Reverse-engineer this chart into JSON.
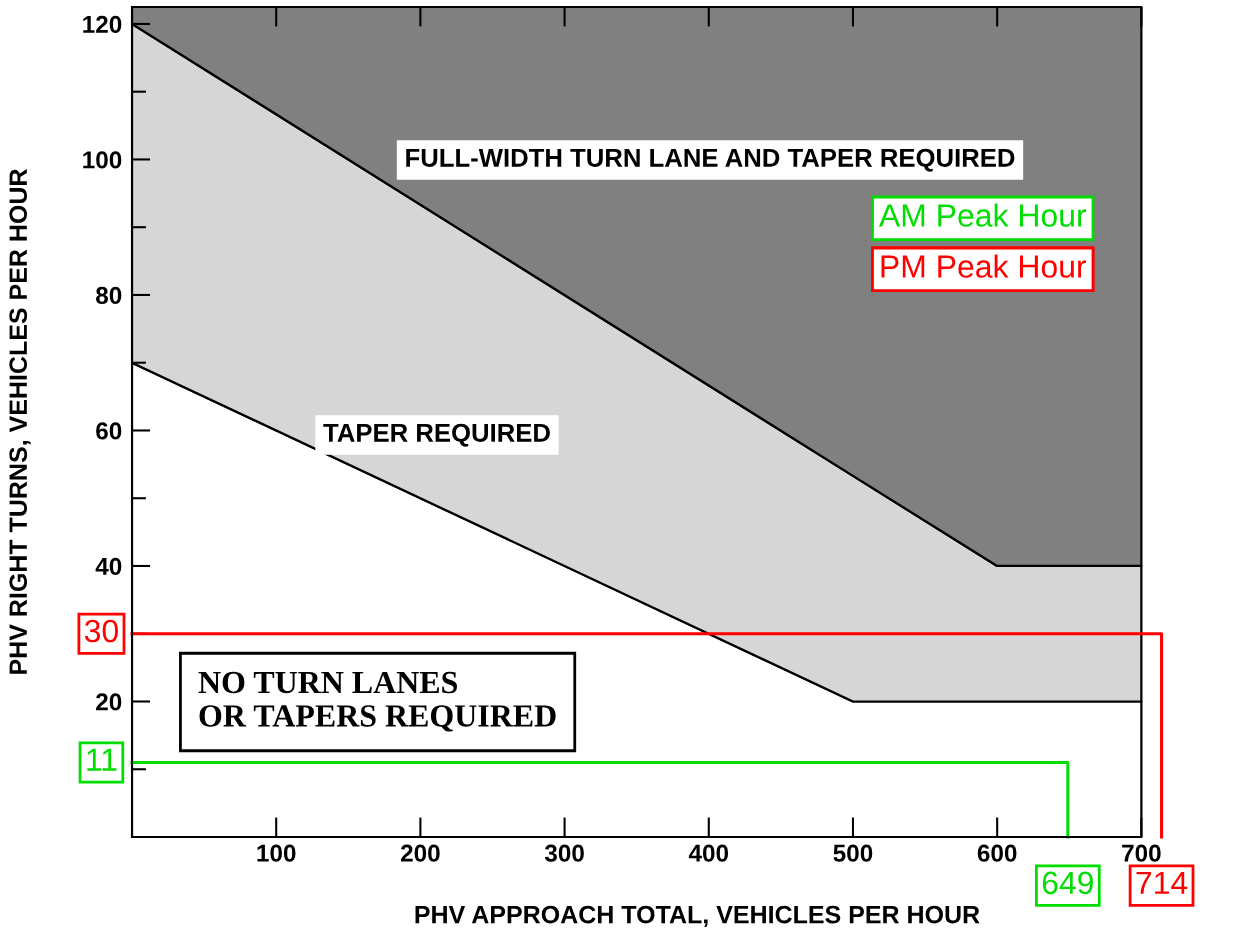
{
  "chart_data": {
    "type": "area",
    "stacked": true,
    "xlabel": "PHV APPROACH TOTAL, VEHICLES PER HOUR",
    "ylabel": "PHV RIGHT TURNS, VEHICLES PER HOUR",
    "xlim": [
      0,
      715
    ],
    "ylim": [
      0,
      122.5
    ],
    "xticks": [
      100,
      200,
      300,
      400,
      500,
      600,
      700
    ],
    "yticks": [
      {
        "value": 10,
        "label": null
      },
      20,
      {
        "value": 30,
        "label": null
      },
      40,
      {
        "value": 50,
        "label": null
      },
      60,
      {
        "value": 70,
        "label": null
      },
      80,
      {
        "value": 90,
        "label": null
      },
      100,
      {
        "value": 110,
        "label": null
      },
      120
    ],
    "grid": false,
    "legend": "top right",
    "line_style": "solid",
    "series": [
      {
        "color": "#ffffff",
        "x": [
          0,
          500,
          600,
          700
        ],
        "values": [
          70,
          20,
          20,
          20
        ]
      },
      {
        "name": "TAPER REQUIRED",
        "color": "#d6d6d6",
        "x": [
          0,
          500,
          600,
          700
        ],
        "values": [
          50,
          33.3,
          20,
          20
        ]
      },
      {
        "name": "FULL-WIDTH TURN LANE AND TAPER REQUIRED",
        "color": "#808080",
        "x": [
          0,
          500,
          600,
          700
        ],
        "values": [
          2.5,
          69.2,
          82.5,
          82.5
        ]
      },
      {
        "name": "AM Peak Hour",
        "type": "line",
        "color": "#00dd00",
        "x": [
          0,
          649,
          649
        ],
        "values": [
          11,
          11,
          0
        ]
      },
      {
        "name": "PM Peak Hour",
        "type": "line",
        "color": "#ff0000",
        "x": [
          0,
          714,
          714
        ],
        "values": [
          30,
          30,
          0
        ]
      }
    ],
    "annotations": [
      "NO TURN LANES\nOR TAPERS REQUIRED",
      {
        "text": "30",
        "x": 0,
        "y": 30
      },
      {
        "text": "11",
        "x": 0,
        "y": 11
      },
      {
        "text": "649",
        "x": 649,
        "y": 0
      },
      {
        "text": "714",
        "x": 714,
        "y": 0
      }
    ]
  }
}
